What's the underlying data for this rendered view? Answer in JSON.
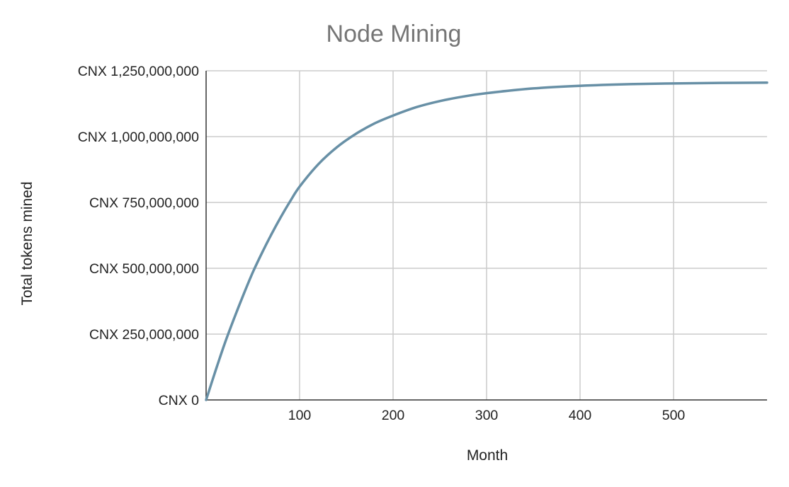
{
  "chart_data": {
    "type": "line",
    "title": "Node Mining",
    "xlabel": "Month",
    "ylabel": "Total tokens mined",
    "xlim": [
      0,
      600
    ],
    "ylim": [
      0,
      1250000000
    ],
    "x_ticks": [
      100,
      200,
      300,
      400,
      500
    ],
    "x_tick_labels": [
      "100",
      "200",
      "300",
      "400",
      "500"
    ],
    "y_ticks": [
      0,
      250000000,
      500000000,
      750000000,
      1000000000,
      1250000000
    ],
    "y_tick_labels": [
      "CNX 0",
      "CNX 250,000,000",
      "CNX 500,000,000",
      "CNX 750,000,000",
      "CNX 1,000,000,000",
      "CNX 1,250,000,000"
    ],
    "grid": true,
    "legend": "none",
    "colors": {
      "series": "#6890a6",
      "grid": "#cccccc",
      "axis": "#333333",
      "title": "#757575"
    },
    "series": [
      {
        "x": [
          0,
          10,
          20,
          30,
          40,
          50,
          60,
          70,
          80,
          90,
          100,
          120,
          140,
          160,
          180,
          200,
          225,
          250,
          275,
          300,
          350,
          400,
          450,
          500,
          550,
          600
        ],
        "values": [
          0,
          110000000,
          215000000,
          310000000,
          400000000,
          485000000,
          560000000,
          630000000,
          695000000,
          755000000,
          810000000,
          895000000,
          960000000,
          1010000000,
          1050000000,
          1080000000,
          1112000000,
          1135000000,
          1152000000,
          1165000000,
          1183000000,
          1193000000,
          1199000000,
          1202000000,
          1204000000,
          1205000000
        ]
      }
    ]
  }
}
